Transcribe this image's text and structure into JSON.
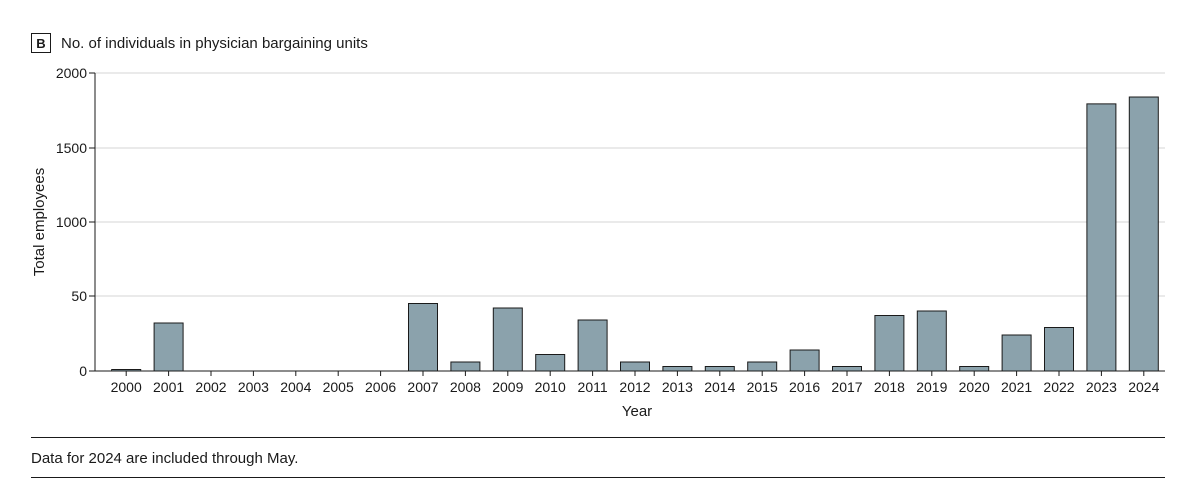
{
  "panel_label": "B",
  "note": "Data for 2024 are included through May.",
  "colors": {
    "bar_fill": "#8ba2ac",
    "bar_stroke": "#1a1a1a",
    "grid": "#d4d4d4",
    "axis": "#1a1a1a"
  },
  "chart_data": {
    "type": "bar",
    "title": "No. of individuals in physician bargaining units",
    "xlabel": "Year",
    "ylabel": "Total employees",
    "y_ticks": [
      "0",
      "50",
      "1000",
      "1500",
      "2000"
    ],
    "y_scale": "broken",
    "ylim": [
      0,
      2000
    ],
    "grid": true,
    "categories": [
      "2000",
      "2001",
      "2002",
      "2003",
      "2004",
      "2005",
      "2006",
      "2007",
      "2008",
      "2009",
      "2010",
      "2011",
      "2012",
      "2013",
      "2014",
      "2015",
      "2016",
      "2017",
      "2018",
      "2019",
      "2020",
      "2021",
      "2022",
      "2023",
      "2024"
    ],
    "values": [
      1,
      32,
      0,
      0,
      0,
      0,
      0,
      45,
      6,
      42,
      11,
      34,
      6,
      3,
      3,
      6,
      14,
      3,
      37,
      40,
      3,
      24,
      29,
      1730,
      1790
    ]
  }
}
